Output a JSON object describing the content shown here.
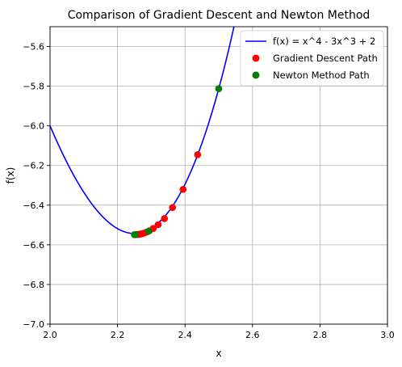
{
  "chart_data": {
    "type": "scatter",
    "title": "Comparison of Gradient Descent and Newton Method",
    "xlabel": "x",
    "ylabel": "f(x)",
    "xlim": [
      2.0,
      3.0
    ],
    "ylim": [
      -7.0,
      -5.5
    ],
    "grid": true,
    "legend_position": "top-right",
    "xticks": [
      2.0,
      2.2,
      2.4,
      2.6,
      2.8,
      3.0
    ],
    "yticks": [
      -7.0,
      -6.8,
      -6.6,
      -6.4,
      -6.2,
      -6.0,
      -5.8,
      -5.6
    ],
    "xtick_labels": [
      "2.0",
      "2.2",
      "2.4",
      "2.6",
      "2.8",
      "3.0"
    ],
    "ytick_labels": [
      "−7.0",
      "−6.8",
      "−6.6",
      "−6.4",
      "−6.2",
      "−6.0",
      "−5.8",
      "−5.6"
    ],
    "curve": {
      "name": "f(x) = x^4 - 3x^3 + 2",
      "color": "#0000ff",
      "function": "x^4 - 3x^3 + 2"
    },
    "series": [
      {
        "name": "Gradient Descent Path",
        "color": "#ff0000",
        "points": [
          [
            2.5,
            -5.8125
          ],
          [
            2.4375,
            -6.1454
          ],
          [
            2.3944,
            -6.3204
          ],
          [
            2.3629,
            -6.4121
          ],
          [
            2.339,
            -6.4678
          ],
          [
            2.3205,
            -6.4981
          ],
          [
            2.3059,
            -6.5172
          ],
          [
            2.2943,
            -6.5292
          ],
          [
            2.285,
            -6.5368
          ],
          [
            2.2775,
            -6.5415
          ],
          [
            2.2714,
            -6.5444
          ],
          [
            2.2665,
            -6.5462
          ],
          [
            2.2625,
            -6.5472
          ],
          [
            2.2593,
            -6.5478
          ],
          [
            2.2567,
            -6.5481
          ],
          [
            2.2546,
            -6.5483
          ],
          [
            2.253,
            -6.5484
          ]
        ]
      },
      {
        "name": "Newton Method Path",
        "color": "#008000",
        "points": [
          [
            2.5,
            -5.8125
          ],
          [
            2.2917,
            -6.5315
          ],
          [
            2.2527,
            -6.5484
          ],
          [
            2.25,
            -6.5488
          ]
        ]
      }
    ]
  }
}
